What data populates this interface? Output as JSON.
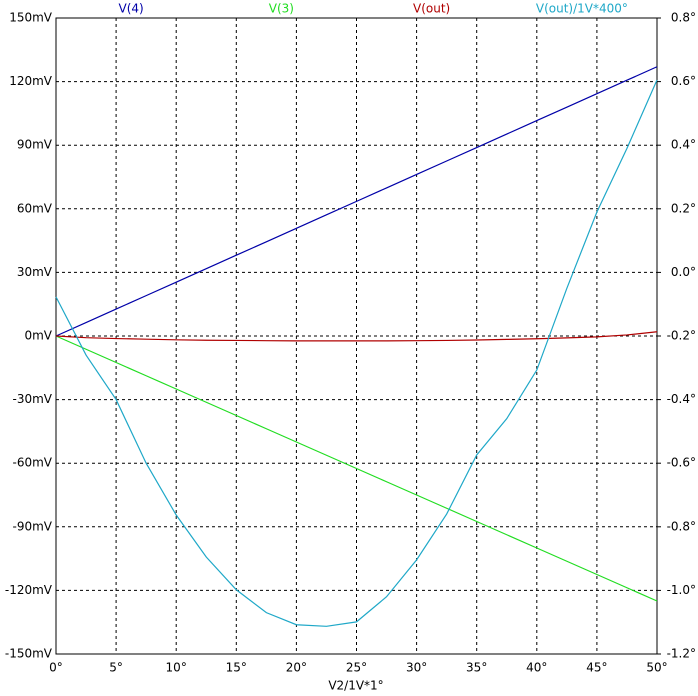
{
  "chart_data": {
    "type": "line",
    "x_label": "V2/1V*1°",
    "x": [
      0,
      2.5,
      5,
      7.5,
      10,
      12.5,
      15,
      17.5,
      20,
      22.5,
      25,
      27.5,
      30,
      32.5,
      35,
      37.5,
      40,
      42.5,
      45,
      47.5,
      50
    ],
    "series": [
      {
        "name": "V(4)",
        "color": "#0000a8",
        "values": [
          0,
          6.35,
          12.7,
          19.05,
          25.4,
          31.75,
          38.1,
          44.45,
          50.8,
          57.15,
          63.5,
          69.85,
          76.2,
          82.55,
          88.9,
          95.25,
          101.6,
          107.95,
          114.3,
          120.65,
          127
        ]
      },
      {
        "name": "V(3)",
        "color": "#22dd22",
        "values": [
          0,
          -6.25,
          -12.5,
          -18.75,
          -25,
          -31.25,
          -37.5,
          -43.75,
          -50,
          -56.25,
          -62.5,
          -68.75,
          -75,
          -81.25,
          -87.5,
          -93.75,
          -100,
          -106.25,
          -112.5,
          -118.75,
          -125
        ]
      },
      {
        "name": "V(out)",
        "color": "#b00000",
        "values": [
          0,
          -0.8,
          -1.2,
          -1.5,
          -1.8,
          -2,
          -2.1,
          -2.2,
          -2.3,
          -2.3,
          -2.3,
          -2.3,
          -2.2,
          -2.1,
          -1.9,
          -1.6,
          -1.3,
          -0.9,
          -0.4,
          0.5,
          2
        ]
      },
      {
        "name": "V(out)/1V*400°",
        "color": "#1fa8c8",
        "axis": "y2",
        "values": [
          -0.077,
          -0.26,
          -0.4,
          -0.6,
          -0.763,
          -0.895,
          -0.998,
          -1.07,
          -1.108,
          -1.113,
          -1.099,
          -1.02,
          -0.904,
          -0.76,
          -0.574,
          -0.46,
          -0.307,
          -0.05,
          0.19,
          0.39,
          0.605
        ]
      }
    ],
    "xlim": [
      0,
      50
    ],
    "xticks": [
      {
        "value": 0,
        "label": "0°"
      },
      {
        "value": 5,
        "label": "5°"
      },
      {
        "value": 10,
        "label": "10°"
      },
      {
        "value": 15,
        "label": "15°"
      },
      {
        "value": 20,
        "label": "20°"
      },
      {
        "value": 25,
        "label": "25°"
      },
      {
        "value": 30,
        "label": "30°"
      },
      {
        "value": 35,
        "label": "35°"
      },
      {
        "value": 40,
        "label": "40°"
      },
      {
        "value": 45,
        "label": "45°"
      },
      {
        "value": 50,
        "label": "50°"
      }
    ],
    "ylim": [
      -150,
      150
    ],
    "yticks": [
      {
        "value": -150,
        "label": "-150mV"
      },
      {
        "value": -120,
        "label": "-120mV"
      },
      {
        "value": -90,
        "label": "-90mV"
      },
      {
        "value": -60,
        "label": "-60mV"
      },
      {
        "value": -30,
        "label": "-30mV"
      },
      {
        "value": 0,
        "label": "0mV"
      },
      {
        "value": 30,
        "label": "30mV"
      },
      {
        "value": 60,
        "label": "60mV"
      },
      {
        "value": 90,
        "label": "90mV"
      },
      {
        "value": 120,
        "label": "120mV"
      },
      {
        "value": 150,
        "label": "150mV"
      }
    ],
    "y2lim": [
      -1.2,
      0.8
    ],
    "y2ticks": [
      {
        "value": -1.2,
        "label": "-1.2°"
      },
      {
        "value": -1.0,
        "label": "-1.0°"
      },
      {
        "value": -0.8,
        "label": "-0.8°"
      },
      {
        "value": -0.6,
        "label": "-0.6°"
      },
      {
        "value": -0.4,
        "label": "-0.4°"
      },
      {
        "value": -0.2,
        "label": "-0.2°"
      },
      {
        "value": 0,
        "label": "0.0°"
      },
      {
        "value": 0.2,
        "label": "0.2°"
      },
      {
        "value": 0.4,
        "label": "0.4°"
      },
      {
        "value": 0.6,
        "label": "0.6°"
      },
      {
        "value": 0.8,
        "label": "0.8°"
      }
    ],
    "grid": true
  }
}
